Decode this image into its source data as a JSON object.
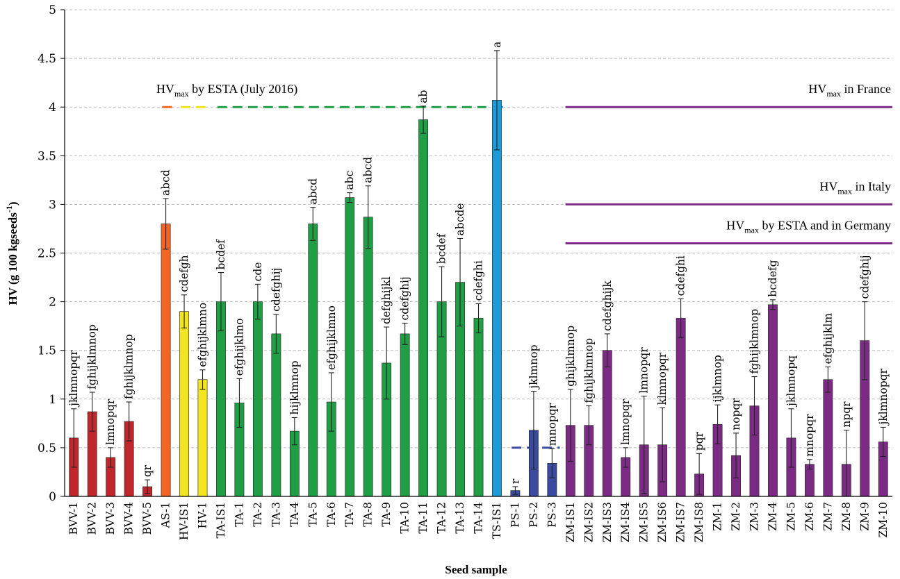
{
  "chart_data": {
    "type": "bar",
    "xlabel": "Seed sample",
    "ylabel_main": "HV (g 100 kgseeds",
    "ylabel_sup": "-1",
    "ylabel_end": ")",
    "ylim": [
      0,
      5
    ],
    "yticks": [
      "0",
      "0.5",
      "1",
      "1.5",
      "2",
      "2.5",
      "3",
      "3.5",
      "4",
      "4.5",
      "5"
    ],
    "grid": true,
    "categories": [
      "BVV-1",
      "BVV-2",
      "BVV-3",
      "BVV-4",
      "BVV-5",
      "AS-1",
      "HV-IS1",
      "HV-1",
      "TA-IS1",
      "TA-1",
      "TA-2",
      "TA-3",
      "TA-4",
      "TA-5",
      "TA-6",
      "TA-7",
      "TA-8",
      "TA-9",
      "TA-10",
      "TA-11",
      "TA-12",
      "TA-13",
      "TA-14",
      "TS-IS1",
      "PS-1",
      "PS-2",
      "PS-3",
      "ZM-IS1",
      "ZM-IS2",
      "ZM-IS3",
      "ZM-IS4",
      "ZM-IS5",
      "ZM-IS6",
      "ZM-IS7",
      "ZM-IS8",
      "ZM-1",
      "ZM-2",
      "ZM-3",
      "ZM-4",
      "ZM-5",
      "ZM-6",
      "ZM-7",
      "ZM-8",
      "ZM-9",
      "ZM-10"
    ],
    "values": [
      0.6,
      0.87,
      0.4,
      0.77,
      0.1,
      2.8,
      1.9,
      1.2,
      2.0,
      0.96,
      2.0,
      1.67,
      0.67,
      2.8,
      0.97,
      3.07,
      2.87,
      1.37,
      1.67,
      3.87,
      2.0,
      2.2,
      1.83,
      4.07,
      0.06,
      0.68,
      0.34,
      0.73,
      0.73,
      1.5,
      0.4,
      0.53,
      0.53,
      1.83,
      0.23,
      0.74,
      0.42,
      0.93,
      1.97,
      0.6,
      0.33,
      1.2,
      0.33,
      1.6,
      0.56
    ],
    "errors": [
      0.3,
      0.2,
      0.1,
      0.2,
      0.07,
      0.26,
      0.17,
      0.1,
      0.3,
      0.25,
      0.18,
      0.2,
      0.14,
      0.17,
      0.3,
      0.05,
      0.32,
      0.37,
      0.11,
      0.14,
      0.36,
      0.45,
      0.15,
      0.51,
      0.04,
      0.4,
      0.15,
      0.37,
      0.2,
      0.17,
      0.1,
      0.5,
      0.38,
      0.2,
      0.21,
      0.2,
      0.23,
      0.3,
      0.05,
      0.3,
      0.05,
      0.13,
      0.35,
      0.4,
      0.15
    ],
    "letters": [
      "jklmnopqr",
      "fghijklmnop",
      "lmnopqr",
      "fghijklmnop",
      "qr",
      "abcd",
      "cdefgh",
      "efghijklmno",
      "bcdef",
      "efghijklmo",
      "cde",
      "cdefghij",
      "hijklmnop",
      "abcd",
      "efghijklmno",
      "abc",
      "abcd",
      "defghijkl",
      "cdefghij",
      "ab",
      "bcdef",
      "abcde",
      "cdefghi",
      "a",
      "r",
      "jklmnop",
      "mnopqr",
      "ghijklmnop",
      "fghijklmnop",
      "cdefghijk",
      "lmnopqr",
      "lmnopqr",
      "klmnopqr",
      "cdefghi",
      "pqr",
      "ijklmnop",
      "nopqr",
      "fghijklmnop",
      "bcdefg",
      "jklmnopq",
      "mnopqr",
      "efghijklm",
      "npqr",
      "cdefghij",
      "jklmnopqr"
    ],
    "colors": [
      "#c0272d",
      "#c0272d",
      "#c0272d",
      "#c0272d",
      "#c0272d",
      "#f26522",
      "#f2e420",
      "#f2e420",
      "#1f9e45",
      "#1f9e45",
      "#1f9e45",
      "#1f9e45",
      "#1f9e45",
      "#1f9e45",
      "#1f9e45",
      "#1f9e45",
      "#1f9e45",
      "#1f9e45",
      "#1f9e45",
      "#1f9e45",
      "#1f9e45",
      "#1f9e45",
      "#1f9e45",
      "#1e9bd7",
      "#3a4b9f",
      "#3a4b9f",
      "#3a4b9f",
      "#7b2b83",
      "#7b2b83",
      "#7b2b83",
      "#7b2b83",
      "#7b2b83",
      "#7b2b83",
      "#7b2b83",
      "#7b2b83",
      "#7b2b83",
      "#7b2b83",
      "#7b2b83",
      "#7b2b83",
      "#7b2b83",
      "#7b2b83",
      "#7b2b83",
      "#7b2b83",
      "#7b2b83",
      "#7b2b83"
    ],
    "reference_lines": [
      {
        "label_main": "HV",
        "label_sub": "max",
        "label_rest": " by ESTA (July 2016)",
        "value": 4.0,
        "style": "dashed",
        "segments": [
          {
            "from": 5,
            "to": 5,
            "color": "#f26522"
          },
          {
            "from": 6,
            "to": 7,
            "color": "#f2e420"
          },
          {
            "from": 8,
            "to": 22,
            "color": "#1f9e45"
          },
          {
            "from": 23,
            "to": 23,
            "color": "#1e9bd7"
          }
        ]
      },
      {
        "label_main": "",
        "label_sub": "",
        "label_rest": "",
        "value": 0.5,
        "style": "dashed",
        "segments": [
          {
            "from": 24,
            "to": 26,
            "color": "#3a4b9f"
          }
        ]
      },
      {
        "label_main": "HV",
        "label_sub": "max",
        "label_rest": " in France",
        "value": 4.0,
        "style": "solid",
        "segments": [
          {
            "from": 27,
            "to": 44,
            "color": "#7b2b83"
          }
        ]
      },
      {
        "label_main": "HV",
        "label_sub": "max",
        "label_rest": " in Italy",
        "value": 3.0,
        "style": "solid",
        "segments": [
          {
            "from": 27,
            "to": 44,
            "color": "#7b2b83"
          }
        ]
      },
      {
        "label_main": "HV",
        "label_sub": "max",
        "label_rest": " by ESTA and in Germany",
        "value": 2.6,
        "style": "solid",
        "segments": [
          {
            "from": 27,
            "to": 44,
            "color": "#7b2b83"
          }
        ]
      }
    ]
  }
}
